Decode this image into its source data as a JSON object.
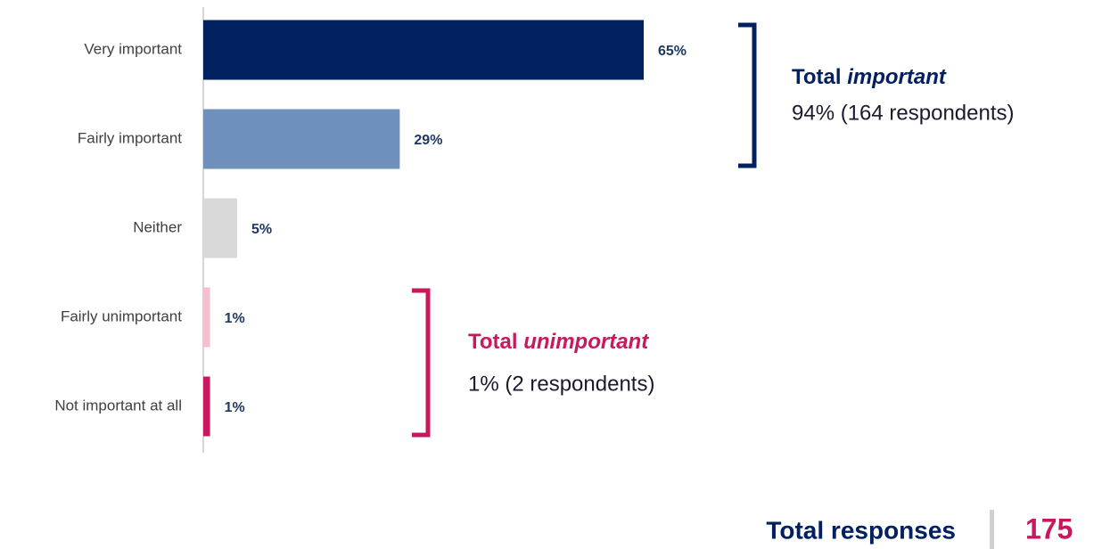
{
  "chart_data": {
    "type": "bar",
    "orientation": "horizontal",
    "categories": [
      "Very important",
      "Fairly important",
      "Neither",
      "Fairly unimportant",
      "Not important at all"
    ],
    "values": [
      65,
      29,
      5,
      1,
      1
    ],
    "value_labels": [
      "65%",
      "29%",
      "5%",
      "1%",
      "1%"
    ],
    "colors": [
      "#002060",
      "#6f90bc",
      "#d9d9d9",
      "#f6bfd0",
      "#c8185e"
    ],
    "xlim": [
      0,
      100
    ],
    "annotations": [
      {
        "prefix": "Total",
        "emphasis": "important",
        "text": "94% (164 respondents)",
        "color": "#002060"
      },
      {
        "prefix": "Total",
        "emphasis": "unimportant",
        "text": "1% (2 respondents)",
        "color": "#c8185e"
      }
    ],
    "total": {
      "label": "Total responses",
      "value": 175
    }
  }
}
